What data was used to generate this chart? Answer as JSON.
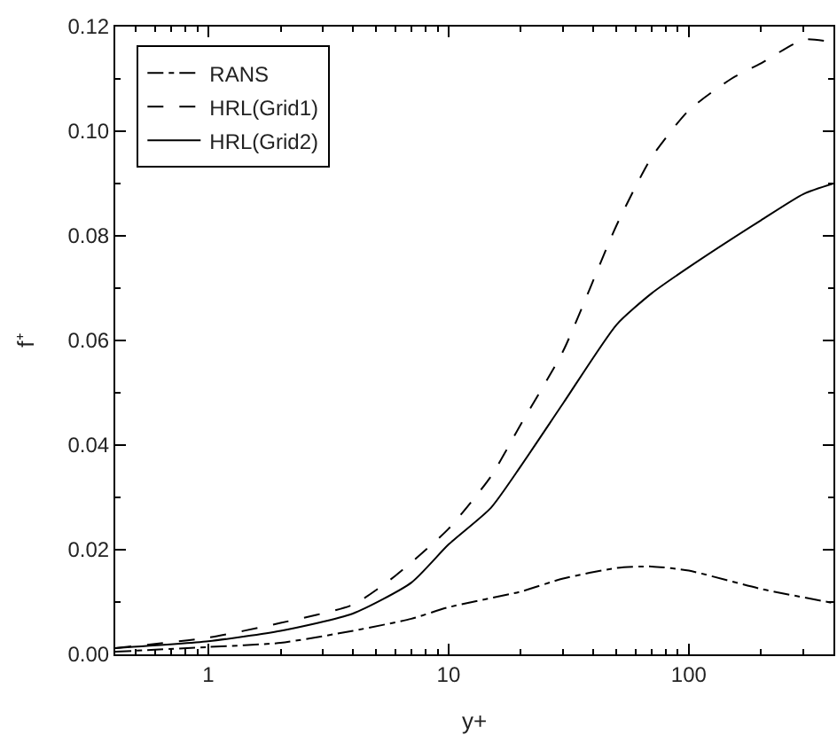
{
  "chart_data": {
    "type": "line",
    "xlabel": "y+",
    "ylabel": "f⁺",
    "log": "x",
    "xlim": [
      0.41,
      400
    ],
    "xticks": [
      1,
      10,
      100
    ],
    "ylim": [
      0,
      0.12
    ],
    "yticks": [
      {
        "value": 0,
        "label": "0.00"
      },
      {
        "value": 0.02,
        "label": "0.02"
      },
      {
        "value": 0.04,
        "label": "0.04"
      },
      {
        "value": 0.06,
        "label": "0.06"
      },
      {
        "value": 0.08,
        "label": "0.08"
      },
      {
        "value": 0.1,
        "label": "0.10"
      },
      {
        "value": 0.12,
        "label": "0.12"
      }
    ],
    "legend": "top left",
    "marker": "none",
    "series": [
      {
        "name": "RANS",
        "color": "#000000",
        "line_style": "dashdot",
        "x": [
          0.41,
          1,
          2,
          4,
          7,
          10,
          20,
          30,
          50,
          70,
          100,
          200,
          400
        ],
        "values": [
          0.0005,
          0.0014,
          0.0022,
          0.0045,
          0.0068,
          0.009,
          0.012,
          0.0145,
          0.0165,
          0.0168,
          0.016,
          0.0125,
          0.0098
        ]
      },
      {
        "name": "HRL(Grid1)",
        "color": "#000000",
        "line_style": "dashed",
        "x": [
          0.41,
          1,
          2,
          4,
          6,
          10,
          15,
          20,
          30,
          50,
          70,
          100,
          150,
          200,
          300,
          400
        ],
        "values": [
          0.0012,
          0.0032,
          0.006,
          0.0095,
          0.015,
          0.024,
          0.034,
          0.044,
          0.058,
          0.082,
          0.095,
          0.104,
          0.11,
          0.113,
          0.1175,
          0.117
        ]
      },
      {
        "name": "HRL(Grid2)",
        "color": "#000000",
        "line_style": "solid",
        "x": [
          0.41,
          1,
          2,
          4,
          7,
          10,
          15,
          20,
          30,
          50,
          70,
          100,
          200,
          300,
          400
        ],
        "values": [
          0.0012,
          0.0025,
          0.0045,
          0.0078,
          0.0137,
          0.021,
          0.028,
          0.036,
          0.048,
          0.063,
          0.069,
          0.074,
          0.083,
          0.088,
          0.09
        ]
      }
    ]
  }
}
